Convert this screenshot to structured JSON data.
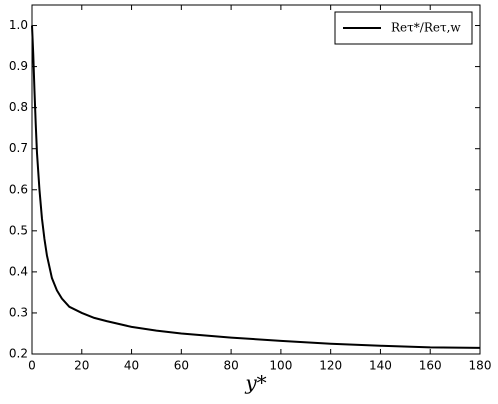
{
  "chart_data": {
    "type": "line",
    "x_label": "y*",
    "x": [
      0,
      0.5,
      1,
      1.5,
      2,
      3,
      4,
      5,
      6,
      8,
      10,
      12,
      15,
      20,
      25,
      30,
      40,
      50,
      60,
      80,
      100,
      120,
      140,
      160,
      180
    ],
    "series": [
      {
        "name": "Reτ*/Reτ,w",
        "color": "#000000",
        "values": [
          1.0,
          0.93,
          0.84,
          0.76,
          0.69,
          0.6,
          0.53,
          0.48,
          0.44,
          0.385,
          0.355,
          0.335,
          0.315,
          0.3,
          0.288,
          0.28,
          0.266,
          0.257,
          0.25,
          0.24,
          0.232,
          0.225,
          0.22,
          0.216,
          0.215
        ]
      }
    ],
    "xlim": [
      0,
      180
    ],
    "xticks": [
      0,
      20,
      40,
      60,
      80,
      100,
      120,
      140,
      160,
      180
    ],
    "ylim": [
      0.2,
      1.05
    ],
    "yticks": [
      0.2,
      0.3,
      0.4,
      0.5,
      0.6,
      0.7,
      0.8,
      0.9,
      {
        "value": 1,
        "label": "1.0"
      }
    ],
    "grid": false,
    "legend": "upper right"
  }
}
